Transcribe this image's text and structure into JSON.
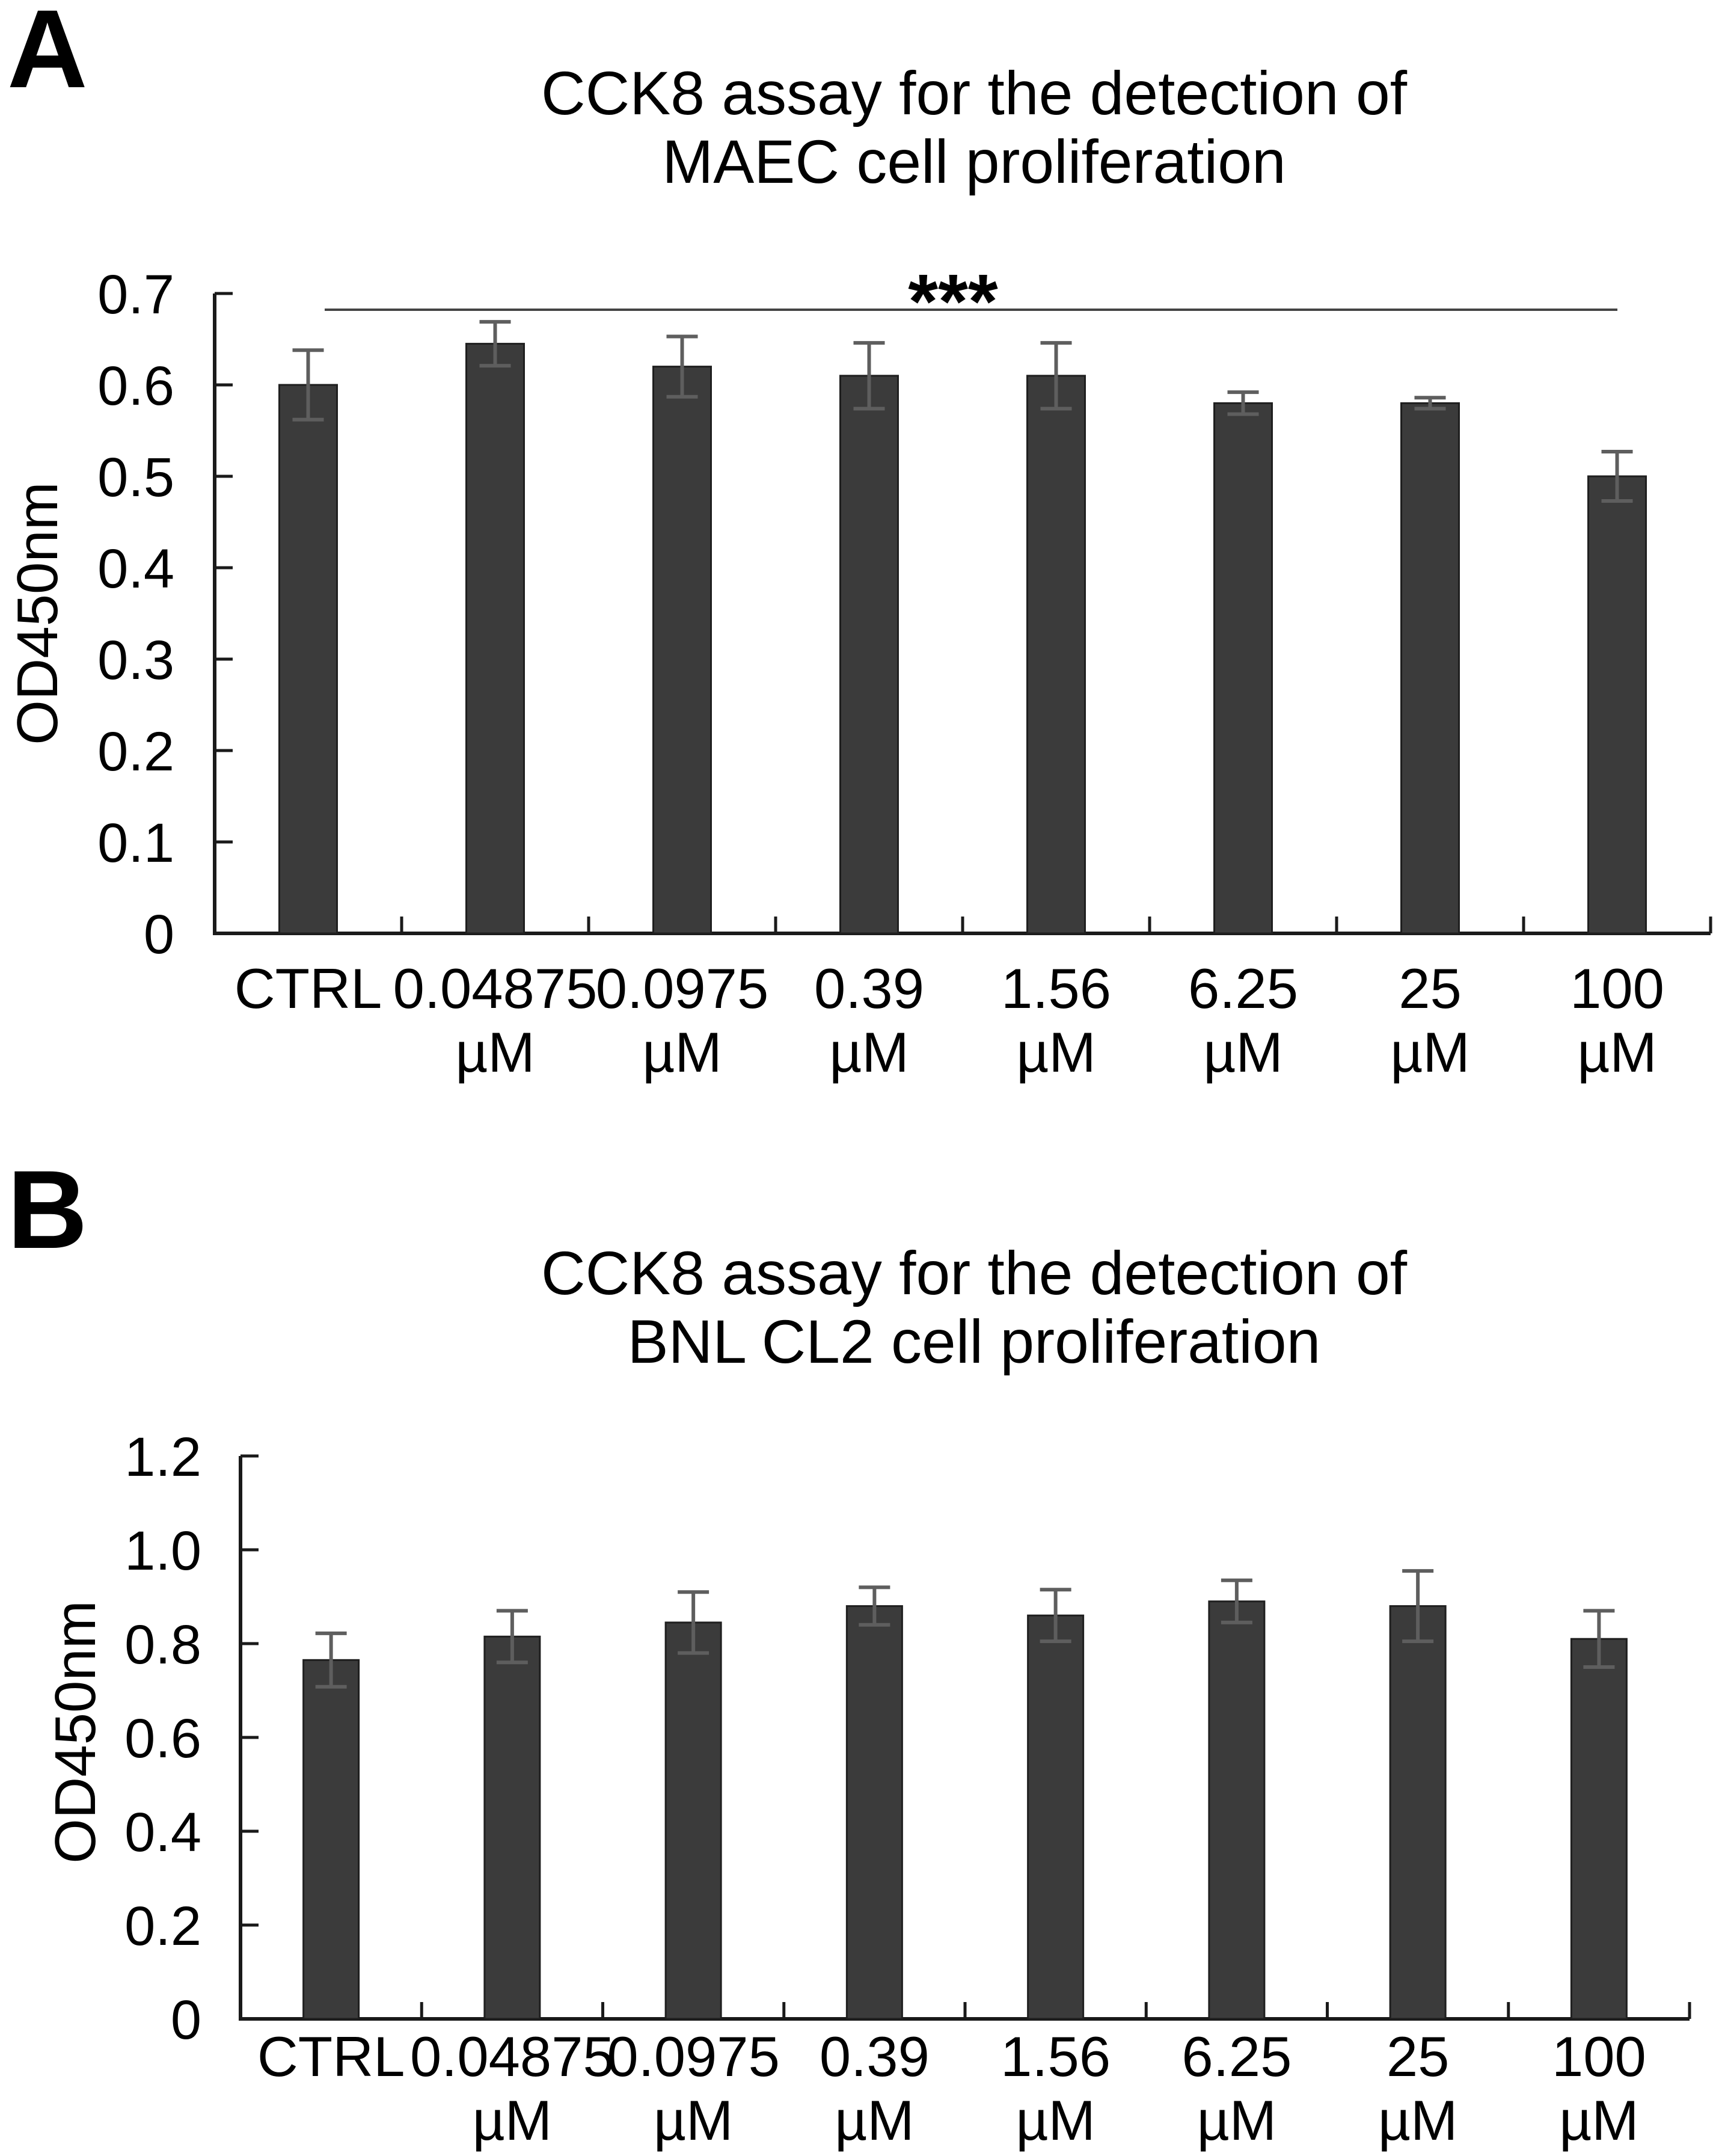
{
  "chart_data": [
    {
      "type": "bar",
      "panel_label": "A",
      "title": "CCK8 assay for the detection of MAEC cell proliferation",
      "title_line1": "CCK8 assay for the detection of",
      "title_line2": "MAEC cell proliferation",
      "ylabel": "OD450nm",
      "xlabel": "",
      "ylim": [
        0,
        0.7
      ],
      "yticks": [
        0,
        0.1,
        0.2,
        0.3,
        0.4,
        0.5,
        0.6,
        0.7
      ],
      "ytick_labels": [
        "0",
        "0.1",
        "0.2",
        "0.3",
        "0.4",
        "0.5",
        "0.6",
        "0.7"
      ],
      "categories": [
        "CTRL",
        "0.04875 µM",
        "0.0975 µM",
        "0.39 µM",
        "1.56 µM",
        "6.25 µM",
        "25 µM",
        "100 µM"
      ],
      "category_line1": [
        "CTRL",
        "0.04875",
        "0.0975",
        "0.39",
        "1.56",
        "6.25",
        "25",
        "100"
      ],
      "category_line2": [
        "",
        "µM",
        "µM",
        "µM",
        "µM",
        "µM",
        "µM",
        "µM"
      ],
      "values": [
        0.6,
        0.645,
        0.62,
        0.61,
        0.61,
        0.58,
        0.58,
        0.5
      ],
      "errors": [
        0.038,
        0.024,
        0.033,
        0.036,
        0.036,
        0.012,
        0.006,
        0.027
      ],
      "significance": {
        "label": "***",
        "from_category": "CTRL",
        "to_category": "100 µM"
      },
      "grid": false,
      "legend": null,
      "bar_color": "#3b3b3b",
      "bar_edge_color": "#1f1f1f",
      "error_bar_color": "#5e5e5e",
      "axis_color": "#1a1a1a",
      "sig_line_color": "#444444"
    },
    {
      "type": "bar",
      "panel_label": "B",
      "title": "CCK8 assay for the detection of BNL CL2 cell proliferation",
      "title_line1": "CCK8 assay for the detection of",
      "title_line2": "BNL CL2 cell proliferation",
      "ylabel": "OD450nm",
      "xlabel": "",
      "ylim": [
        0,
        1.2
      ],
      "yticks": [
        0,
        0.2,
        0.4,
        0.6,
        0.8,
        1.0,
        1.2
      ],
      "ytick_labels": [
        "0",
        "0.2",
        "0.4",
        "0.6",
        "0.8",
        "1.0",
        "1.2"
      ],
      "categories": [
        "CTRL",
        "0.04875 µM",
        "0.0975 µM",
        "0.39 µM",
        "1.56 µM",
        "6.25 µM",
        "25 µM",
        "100 µM"
      ],
      "category_line1": [
        "CTRL",
        "0.04875",
        "0.0975",
        "0.39",
        "1.56",
        "6.25",
        "25",
        "100"
      ],
      "category_line2": [
        "",
        "µM",
        "µM",
        "µM",
        "µM",
        "µM",
        "µM",
        "µM"
      ],
      "values": [
        0.765,
        0.815,
        0.845,
        0.88,
        0.86,
        0.89,
        0.88,
        0.81
      ],
      "errors": [
        0.057,
        0.055,
        0.065,
        0.04,
        0.055,
        0.045,
        0.075,
        0.06
      ],
      "significance": null,
      "grid": false,
      "legend": null,
      "bar_color": "#3b3b3b",
      "bar_edge_color": "#1f1f1f",
      "error_bar_color": "#5e5e5e",
      "axis_color": "#1a1a1a",
      "sig_line_color": "#444444"
    }
  ]
}
